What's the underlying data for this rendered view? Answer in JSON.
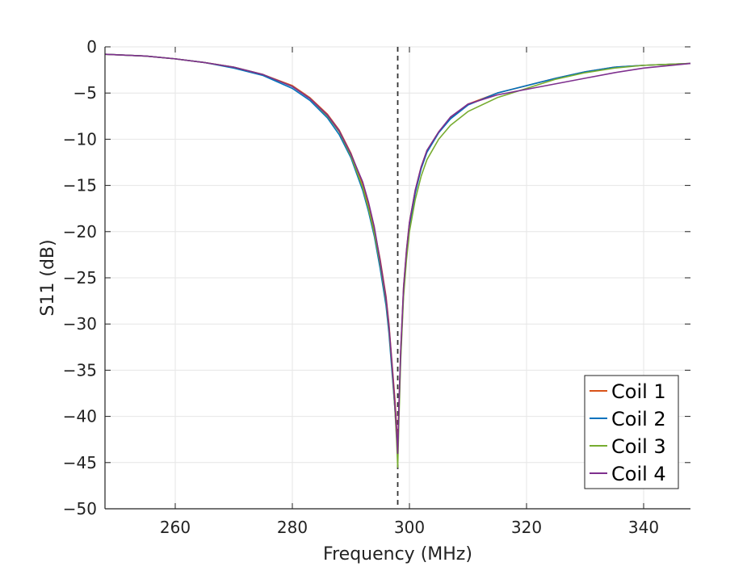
{
  "chart_data": {
    "type": "line",
    "title": "",
    "xlabel": "Frequency (MHz)",
    "ylabel": "S11 (dB)",
    "xlim": [
      248,
      348
    ],
    "ylim": [
      -50,
      0
    ],
    "xticks": [
      260,
      280,
      300,
      320,
      340
    ],
    "yticks": [
      0,
      -5,
      -10,
      -15,
      -20,
      -25,
      -30,
      -35,
      -40,
      -45,
      -50
    ],
    "xtick_labels": [
      "260",
      "280",
      "300",
      "320",
      "340"
    ],
    "ytick_labels": [
      "0",
      "−5",
      "−10",
      "−15",
      "−20",
      "−25",
      "−30",
      "−35",
      "−40",
      "−45",
      "−50"
    ],
    "grid": true,
    "legend_position": "bottom-right",
    "reference_line": {
      "x": 298,
      "style": "dashed",
      "color": "#333333"
    },
    "series": [
      {
        "name": "Coil 1",
        "color": "#D95319",
        "x": [
          248,
          255,
          260,
          265,
          270,
          275,
          280,
          283,
          286,
          288,
          290,
          292,
          293,
          294,
          295,
          296,
          296.5,
          297,
          297.5,
          297.8,
          298,
          298.2,
          298.5,
          299,
          299.5,
          300,
          301,
          302,
          303,
          305,
          307,
          310,
          315,
          320,
          325,
          330,
          335,
          340,
          348
        ],
        "y": [
          -0.8,
          -1.0,
          -1.3,
          -1.7,
          -2.2,
          -3.0,
          -4.2,
          -5.5,
          -7.3,
          -9.0,
          -11.5,
          -14.8,
          -17.0,
          -19.8,
          -23.0,
          -27.0,
          -30.0,
          -34.0,
          -38.0,
          -41.0,
          -43.5,
          -39.0,
          -33.0,
          -26.0,
          -22.0,
          -19.0,
          -15.5,
          -13.0,
          -11.2,
          -9.2,
          -7.7,
          -6.2,
          -5.0,
          -4.2,
          -3.4,
          -2.7,
          -2.2,
          -2.0,
          -1.8
        ]
      },
      {
        "name": "Coil 2",
        "color": "#0072BD",
        "x": [
          248,
          255,
          260,
          265,
          270,
          275,
          280,
          283,
          286,
          288,
          290,
          292,
          293,
          294,
          295,
          296,
          296.5,
          297,
          297.5,
          297.8,
          298,
          298.2,
          298.5,
          299,
          299.5,
          300,
          301,
          302,
          303,
          305,
          307,
          310,
          315,
          320,
          325,
          330,
          335,
          340,
          348
        ],
        "y": [
          -0.8,
          -1.0,
          -1.3,
          -1.7,
          -2.3,
          -3.1,
          -4.5,
          -5.8,
          -7.7,
          -9.5,
          -12.0,
          -15.5,
          -17.8,
          -20.5,
          -24.0,
          -28.0,
          -31.0,
          -35.0,
          -39.0,
          -42.0,
          -44.0,
          -39.5,
          -33.5,
          -26.5,
          -22.5,
          -19.5,
          -15.8,
          -13.2,
          -11.4,
          -9.3,
          -7.8,
          -6.3,
          -5.0,
          -4.2,
          -3.4,
          -2.7,
          -2.2,
          -2.0,
          -1.8
        ]
      },
      {
        "name": "Coil 3",
        "color": "#77AC30",
        "x": [
          248,
          255,
          260,
          265,
          270,
          275,
          280,
          283,
          286,
          288,
          290,
          292,
          293,
          294,
          295,
          296,
          296.5,
          297,
          297.5,
          297.8,
          298,
          298.2,
          298.5,
          299,
          299.5,
          300,
          301,
          302,
          303,
          305,
          307,
          310,
          315,
          320,
          325,
          330,
          335,
          340,
          348
        ],
        "y": [
          -0.8,
          -1.0,
          -1.3,
          -1.7,
          -2.2,
          -3.0,
          -4.3,
          -5.6,
          -7.5,
          -9.2,
          -11.8,
          -15.2,
          -17.5,
          -20.2,
          -23.5,
          -27.5,
          -30.5,
          -34.5,
          -39.0,
          -42.5,
          -45.5,
          -40.5,
          -34.0,
          -27.0,
          -23.0,
          -20.0,
          -16.5,
          -14.0,
          -12.2,
          -10.0,
          -8.5,
          -7.0,
          -5.5,
          -4.5,
          -3.5,
          -2.8,
          -2.3,
          -2.0,
          -1.8
        ]
      },
      {
        "name": "Coil 4",
        "color": "#7E2F8E",
        "x": [
          248,
          255,
          260,
          265,
          270,
          275,
          280,
          283,
          286,
          288,
          290,
          292,
          293,
          294,
          295,
          296,
          296.5,
          297,
          297.5,
          297.8,
          298,
          298.2,
          298.5,
          299,
          299.5,
          300,
          301,
          302,
          303,
          305,
          307,
          310,
          315,
          320,
          325,
          330,
          335,
          340,
          348
        ],
        "y": [
          -0.8,
          -1.0,
          -1.3,
          -1.7,
          -2.2,
          -3.0,
          -4.3,
          -5.6,
          -7.4,
          -9.1,
          -11.6,
          -14.6,
          -16.8,
          -19.5,
          -23.2,
          -27.2,
          -30.2,
          -34.2,
          -38.5,
          -41.5,
          -44.0,
          -39.0,
          -33.0,
          -26.0,
          -22.0,
          -19.0,
          -15.5,
          -13.0,
          -11.2,
          -9.2,
          -7.6,
          -6.2,
          -5.2,
          -4.6,
          -4.0,
          -3.4,
          -2.8,
          -2.3,
          -1.8
        ]
      }
    ]
  }
}
